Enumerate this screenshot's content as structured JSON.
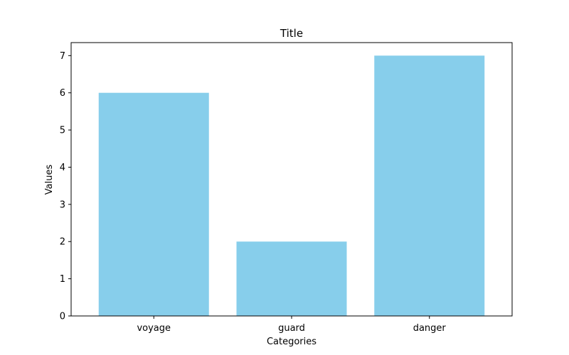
{
  "chart_data": {
    "type": "bar",
    "title": "Title",
    "xlabel": "Categories",
    "ylabel": "Values",
    "categories": [
      "voyage",
      "guard",
      "danger"
    ],
    "values": [
      6,
      2,
      7
    ],
    "ylim": [
      0,
      7.35
    ],
    "yticks": [
      "0",
      "1",
      "2",
      "3",
      "4",
      "5",
      "6",
      "7"
    ],
    "bar_color": "#87ceeb",
    "grid": false,
    "legend": "none"
  }
}
